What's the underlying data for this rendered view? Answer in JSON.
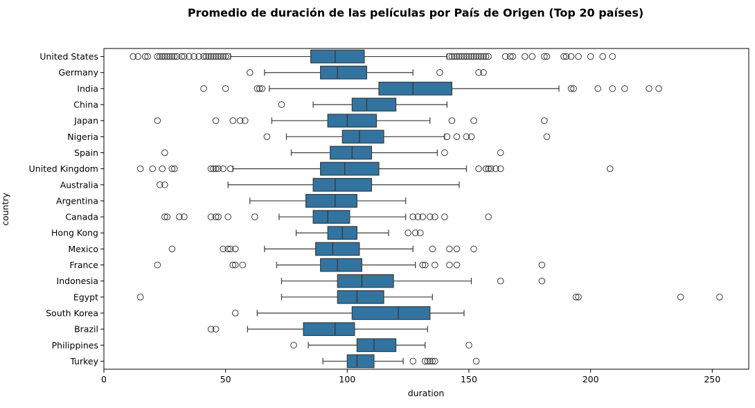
{
  "chart_data": {
    "type": "boxplot",
    "orientation": "horizontal",
    "title": "Promedio de duración de las películas por País de Origen (Top 20 países)",
    "xlabel": "duration",
    "ylabel": "country",
    "xlim": [
      0,
      265
    ],
    "xticks": [
      0,
      50,
      100,
      150,
      200,
      250
    ],
    "grid": false,
    "colors": {
      "box_fill": "#3274a1",
      "line": "#3a3a3a",
      "median": "#3a3a3a",
      "outlier_edge": "#3a3a3a"
    },
    "series": [
      {
        "country": "United States",
        "whisker_low": 52,
        "q1": 85,
        "median": 95,
        "q3": 107,
        "whisker_high": 141,
        "outliers": [
          12,
          14,
          17,
          18,
          22,
          23,
          24,
          25,
          26,
          27,
          28,
          29,
          30,
          32,
          33,
          35,
          37,
          39,
          41,
          42,
          43,
          44,
          45,
          46,
          47,
          48,
          49,
          50,
          51,
          142,
          143,
          144,
          145,
          146,
          147,
          148,
          149,
          150,
          151,
          152,
          153,
          154,
          155,
          156,
          157,
          158,
          165,
          167,
          168,
          173,
          176,
          181,
          182,
          189,
          190,
          192,
          195,
          200,
          205,
          209
        ]
      },
      {
        "country": "Germany",
        "whisker_low": 66,
        "q1": 89,
        "median": 96,
        "q3": 108,
        "whisker_high": 127,
        "outliers": [
          60,
          138,
          154,
          156
        ]
      },
      {
        "country": "India",
        "whisker_low": 68,
        "q1": 113,
        "median": 127,
        "q3": 143,
        "whisker_high": 187,
        "outliers": [
          41,
          50,
          63,
          64,
          65,
          192,
          193,
          203,
          209,
          214,
          224,
          228
        ]
      },
      {
        "country": "China",
        "whisker_low": 86,
        "q1": 102,
        "median": 108,
        "q3": 120,
        "whisker_high": 141,
        "outliers": [
          73
        ]
      },
      {
        "country": "Japan",
        "whisker_low": 69,
        "q1": 92,
        "median": 100,
        "q3": 112,
        "whisker_high": 134,
        "outliers": [
          22,
          46,
          53,
          56,
          58,
          143,
          152,
          181
        ]
      },
      {
        "country": "Nigeria",
        "whisker_low": 75,
        "q1": 98,
        "median": 105,
        "q3": 115,
        "whisker_high": 140,
        "outliers": [
          67,
          141,
          145,
          149,
          151,
          182
        ]
      },
      {
        "country": "Spain",
        "whisker_low": 77,
        "q1": 93,
        "median": 102,
        "q3": 110,
        "whisker_high": 137,
        "outliers": [
          25,
          140,
          163
        ]
      },
      {
        "country": "United Kingdom",
        "whisker_low": 53,
        "q1": 89,
        "median": 99,
        "q3": 113,
        "whisker_high": 149,
        "outliers": [
          15,
          20,
          24,
          28,
          29,
          44,
          45,
          46,
          47,
          49,
          52,
          154,
          157,
          158,
          159,
          161,
          163,
          208
        ]
      },
      {
        "country": "Australia",
        "whisker_low": 51,
        "q1": 86,
        "median": 95,
        "q3": 110,
        "whisker_high": 146,
        "outliers": [
          23,
          25
        ]
      },
      {
        "country": "Argentina",
        "whisker_low": 60,
        "q1": 83,
        "median": 95,
        "q3": 104,
        "whisker_high": 124,
        "outliers": []
      },
      {
        "country": "Canada",
        "whisker_low": 72,
        "q1": 86,
        "median": 92,
        "q3": 101,
        "whisker_high": 124,
        "outliers": [
          25,
          26,
          31,
          33,
          44,
          46,
          47,
          51,
          62,
          127,
          129,
          131,
          134,
          136,
          140,
          158
        ]
      },
      {
        "country": "Hong Kong",
        "whisker_low": 79,
        "q1": 92,
        "median": 98,
        "q3": 104,
        "whisker_high": 117,
        "outliers": [
          125,
          128,
          130
        ]
      },
      {
        "country": "Mexico",
        "whisker_low": 66,
        "q1": 87,
        "median": 94,
        "q3": 105,
        "whisker_high": 127,
        "outliers": [
          28,
          49,
          51,
          52,
          54,
          135,
          142,
          145,
          152
        ]
      },
      {
        "country": "France",
        "whisker_low": 71,
        "q1": 89,
        "median": 96,
        "q3": 106,
        "whisker_high": 128,
        "outliers": [
          22,
          53,
          54,
          57,
          131,
          132,
          136,
          142,
          145,
          180
        ]
      },
      {
        "country": "Indonesia",
        "whisker_low": 73,
        "q1": 96,
        "median": 106,
        "q3": 119,
        "whisker_high": 151,
        "outliers": [
          163,
          180
        ]
      },
      {
        "country": "Egypt",
        "whisker_low": 73,
        "q1": 96,
        "median": 104,
        "q3": 115,
        "whisker_high": 135,
        "outliers": [
          15,
          194,
          195,
          237,
          253
        ]
      },
      {
        "country": "South Korea",
        "whisker_low": 63,
        "q1": 102,
        "median": 121,
        "q3": 134,
        "whisker_high": 148,
        "outliers": [
          54
        ]
      },
      {
        "country": "Brazil",
        "whisker_low": 59,
        "q1": 82,
        "median": 95,
        "q3": 103,
        "whisker_high": 133,
        "outliers": [
          44,
          46
        ]
      },
      {
        "country": "Philippines",
        "whisker_low": 84,
        "q1": 104,
        "median": 111,
        "q3": 120,
        "whisker_high": 132,
        "outliers": [
          78,
          150
        ]
      },
      {
        "country": "Turkey",
        "whisker_low": 90,
        "q1": 100,
        "median": 104,
        "q3": 111,
        "whisker_high": 123,
        "outliers": [
          127,
          132,
          133,
          134,
          135,
          136,
          153
        ]
      }
    ]
  }
}
